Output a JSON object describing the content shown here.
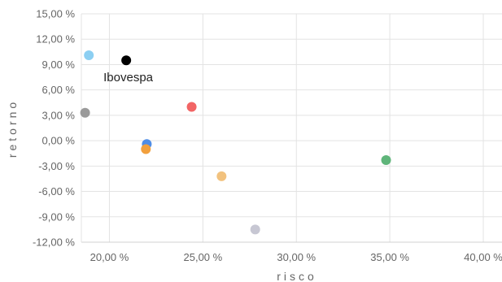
{
  "chart_data": {
    "type": "scatter",
    "xlabel": "risco",
    "ylabel": "retorno",
    "xlim": [
      18.5,
      41
    ],
    "ylim": [
      -12,
      15
    ],
    "x_ticks": [
      20,
      25,
      30,
      35,
      40
    ],
    "y_ticks": [
      15,
      12,
      9,
      6,
      3,
      0,
      -3,
      -6,
      -9,
      -12
    ],
    "tick_format": "pt-BR percent, 2 decimals",
    "grid": true,
    "points": [
      {
        "x": 18.9,
        "y": 10.1,
        "color": "#8ccff2"
      },
      {
        "x": 20.9,
        "y": 9.5,
        "color": "#000000",
        "label": "Ibovespa"
      },
      {
        "x": 18.7,
        "y": 3.3,
        "color": "#9a9a9a"
      },
      {
        "x": 24.4,
        "y": 4.0,
        "color": "#f26565"
      },
      {
        "x": 22.0,
        "y": -0.4,
        "color": "#4f8de6"
      },
      {
        "x": 21.95,
        "y": -1.0,
        "color": "#f2a03d"
      },
      {
        "x": 26.0,
        "y": -4.2,
        "color": "#f2c27e"
      },
      {
        "x": 34.8,
        "y": -2.3,
        "color": "#5fb57a"
      },
      {
        "x": 27.8,
        "y": -10.5,
        "color": "#c7c7d3"
      }
    ]
  }
}
